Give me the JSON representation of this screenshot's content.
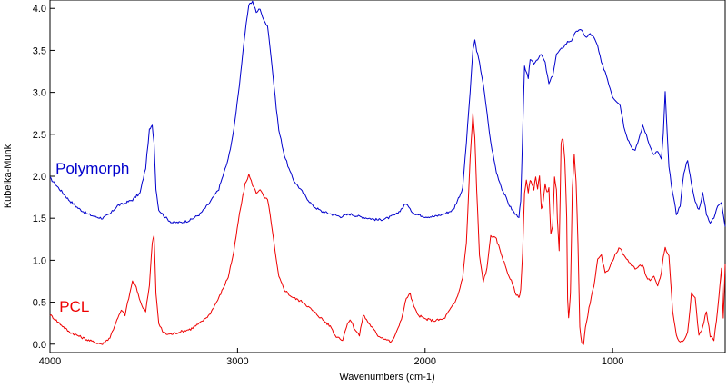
{
  "chart_data": {
    "type": "line",
    "xlabel": "Wavenumbers (cm-1)",
    "ylabel": "Kubelka-Munk",
    "xlim": [
      4000,
      400
    ],
    "ylim": [
      -0.1,
      4.1
    ],
    "x_reversed": true,
    "x_ticks": [
      4000,
      3000,
      2000,
      1000
    ],
    "x_tick_labels": [
      "4000",
      "3000",
      "2000",
      "1000"
    ],
    "y_ticks": [
      0,
      0.5,
      1,
      1.5,
      2,
      2.5,
      3,
      3.5,
      4
    ],
    "y_tick_labels": [
      "0.0",
      "0.5",
      "1.0",
      "1.5",
      "2.0",
      "2.5",
      "3.0",
      "3.5",
      "4.0"
    ],
    "grid": false,
    "legend": "none",
    "annotations": [
      {
        "text": "Polymorph",
        "series": "Polymorph",
        "wavenumber": 3980,
        "value": 2.1
      },
      {
        "text": "PCL",
        "series": "PCL",
        "wavenumber": 3960,
        "value": 0.45
      }
    ],
    "series": [
      {
        "name": "Polymorph",
        "color": "#0000cc",
        "x": [
          4000,
          3950,
          3900,
          3850,
          3800,
          3760,
          3720,
          3680,
          3640,
          3600,
          3560,
          3520,
          3490,
          3470,
          3455,
          3445,
          3435,
          3420,
          3400,
          3380,
          3350,
          3300,
          3250,
          3200,
          3150,
          3100,
          3050,
          3020,
          2990,
          2960,
          2940,
          2920,
          2900,
          2880,
          2860,
          2840,
          2820,
          2800,
          2780,
          2750,
          2720,
          2700,
          2650,
          2600,
          2550,
          2500,
          2450,
          2400,
          2350,
          2300,
          2250,
          2200,
          2150,
          2100,
          2080,
          2050,
          2000,
          1950,
          1900,
          1850,
          1800,
          1780,
          1760,
          1745,
          1735,
          1725,
          1710,
          1690,
          1670,
          1650,
          1620,
          1590,
          1550,
          1520,
          1500,
          1490,
          1480,
          1470,
          1460,
          1450,
          1440,
          1420,
          1400,
          1380,
          1360,
          1340,
          1320,
          1300,
          1280,
          1260,
          1240,
          1220,
          1200,
          1180,
          1160,
          1140,
          1120,
          1100,
          1080,
          1060,
          1040,
          1020,
          1000,
          980,
          960,
          940,
          920,
          900,
          880,
          860,
          840,
          820,
          800,
          780,
          760,
          740,
          730,
          720,
          700,
          680,
          660,
          640,
          620,
          600,
          580,
          560,
          540,
          520,
          500,
          480,
          460,
          440,
          420,
          410,
          400
        ],
        "values": [
          1.98,
          1.85,
          1.72,
          1.62,
          1.55,
          1.52,
          1.5,
          1.55,
          1.65,
          1.68,
          1.72,
          1.8,
          2.1,
          2.55,
          2.6,
          2.4,
          1.85,
          1.6,
          1.55,
          1.5,
          1.45,
          1.45,
          1.48,
          1.55,
          1.68,
          1.85,
          2.2,
          2.55,
          3.1,
          3.7,
          4.05,
          4.08,
          3.95,
          4.0,
          3.85,
          3.8,
          3.4,
          2.95,
          2.55,
          2.25,
          2.05,
          1.95,
          1.8,
          1.65,
          1.58,
          1.55,
          1.52,
          1.55,
          1.52,
          1.5,
          1.48,
          1.5,
          1.55,
          1.68,
          1.6,
          1.55,
          1.52,
          1.52,
          1.55,
          1.6,
          1.85,
          2.4,
          3.0,
          3.5,
          3.62,
          3.5,
          3.35,
          3.1,
          2.75,
          2.4,
          2.05,
          1.85,
          1.65,
          1.55,
          1.52,
          1.7,
          2.5,
          3.3,
          3.25,
          3.15,
          3.4,
          3.35,
          3.4,
          3.45,
          3.35,
          3.1,
          3.2,
          3.45,
          3.5,
          3.55,
          3.6,
          3.62,
          3.7,
          3.75,
          3.72,
          3.65,
          3.7,
          3.65,
          3.55,
          3.35,
          3.25,
          3.1,
          2.95,
          2.9,
          2.85,
          2.6,
          2.45,
          2.35,
          2.3,
          2.45,
          2.6,
          2.5,
          2.35,
          2.25,
          2.3,
          2.2,
          2.5,
          3.0,
          2.1,
          1.8,
          1.55,
          1.65,
          2.05,
          2.2,
          1.9,
          1.7,
          1.6,
          1.8,
          1.55,
          1.45,
          1.5,
          1.65,
          1.7,
          1.55,
          1.4
        ],
        "label": "Polymorph"
      },
      {
        "name": "PCL",
        "color": "#ee0000",
        "x": [
          4000,
          3950,
          3900,
          3850,
          3800,
          3760,
          3720,
          3680,
          3650,
          3620,
          3600,
          3580,
          3560,
          3545,
          3530,
          3510,
          3490,
          3470,
          3455,
          3445,
          3435,
          3420,
          3400,
          3380,
          3350,
          3300,
          3250,
          3200,
          3150,
          3100,
          3050,
          3020,
          2990,
          2960,
          2940,
          2920,
          2900,
          2880,
          2860,
          2840,
          2820,
          2800,
          2780,
          2750,
          2720,
          2700,
          2650,
          2600,
          2550,
          2500,
          2480,
          2460,
          2440,
          2420,
          2400,
          2380,
          2350,
          2330,
          2300,
          2250,
          2200,
          2180,
          2150,
          2120,
          2100,
          2080,
          2060,
          2040,
          2000,
          1950,
          1900,
          1870,
          1840,
          1820,
          1800,
          1780,
          1760,
          1745,
          1735,
          1725,
          1710,
          1690,
          1670,
          1650,
          1620,
          1590,
          1560,
          1540,
          1520,
          1500,
          1490,
          1480,
          1470,
          1460,
          1450,
          1440,
          1430,
          1420,
          1410,
          1400,
          1390,
          1380,
          1370,
          1360,
          1350,
          1340,
          1330,
          1320,
          1310,
          1300,
          1295,
          1285,
          1275,
          1265,
          1255,
          1245,
          1240,
          1235,
          1225,
          1215,
          1205,
          1195,
          1185,
          1175,
          1165,
          1155,
          1145,
          1120,
          1100,
          1080,
          1060,
          1040,
          1020,
          1000,
          980,
          960,
          940,
          920,
          900,
          880,
          860,
          840,
          820,
          800,
          780,
          760,
          740,
          730,
          720,
          700,
          680,
          660,
          640,
          620,
          600,
          580,
          560,
          540,
          520,
          500,
          480,
          460,
          440,
          420,
          410,
          400
        ],
        "values": [
          0.35,
          0.25,
          0.15,
          0.1,
          0.05,
          0.02,
          0.0,
          0.08,
          0.25,
          0.4,
          0.35,
          0.55,
          0.75,
          0.7,
          0.6,
          0.45,
          0.4,
          0.7,
          1.2,
          1.3,
          0.6,
          0.25,
          0.15,
          0.12,
          0.12,
          0.15,
          0.18,
          0.25,
          0.35,
          0.55,
          0.8,
          1.1,
          1.55,
          1.9,
          2.02,
          1.9,
          1.8,
          1.85,
          1.75,
          1.72,
          1.45,
          1.1,
          0.8,
          0.65,
          0.58,
          0.55,
          0.5,
          0.4,
          0.3,
          0.2,
          0.1,
          0.08,
          0.05,
          0.2,
          0.3,
          0.2,
          0.1,
          0.35,
          0.25,
          0.1,
          0.05,
          0.02,
          0.15,
          0.35,
          0.55,
          0.6,
          0.45,
          0.35,
          0.3,
          0.28,
          0.3,
          0.4,
          0.5,
          0.62,
          0.8,
          1.2,
          2.2,
          2.75,
          2.45,
          1.85,
          1.05,
          0.75,
          0.9,
          1.3,
          1.25,
          1.05,
          0.85,
          0.75,
          0.62,
          0.55,
          0.65,
          1.1,
          1.8,
          1.95,
          1.8,
          1.95,
          1.9,
          1.85,
          2.0,
          1.85,
          2.0,
          1.6,
          1.7,
          1.9,
          1.8,
          1.85,
          1.3,
          1.4,
          2.0,
          1.85,
          1.5,
          1.1,
          2.4,
          2.45,
          2.2,
          1.5,
          0.55,
          0.3,
          0.6,
          1.85,
          2.25,
          1.95,
          1.2,
          0.2,
          0.02,
          0.0,
          0.2,
          0.5,
          0.7,
          1.0,
          1.05,
          0.85,
          0.9,
          1.0,
          1.1,
          1.15,
          1.05,
          1.0,
          0.95,
          0.9,
          0.92,
          0.95,
          0.8,
          0.75,
          0.8,
          0.7,
          0.85,
          1.05,
          1.15,
          1.05,
          0.4,
          0.1,
          0.02,
          0.05,
          0.15,
          0.6,
          0.55,
          0.1,
          0.2,
          0.4,
          0.1,
          0.05,
          0.4,
          0.9,
          0.3,
          0.95
        ]
      }
    ]
  }
}
